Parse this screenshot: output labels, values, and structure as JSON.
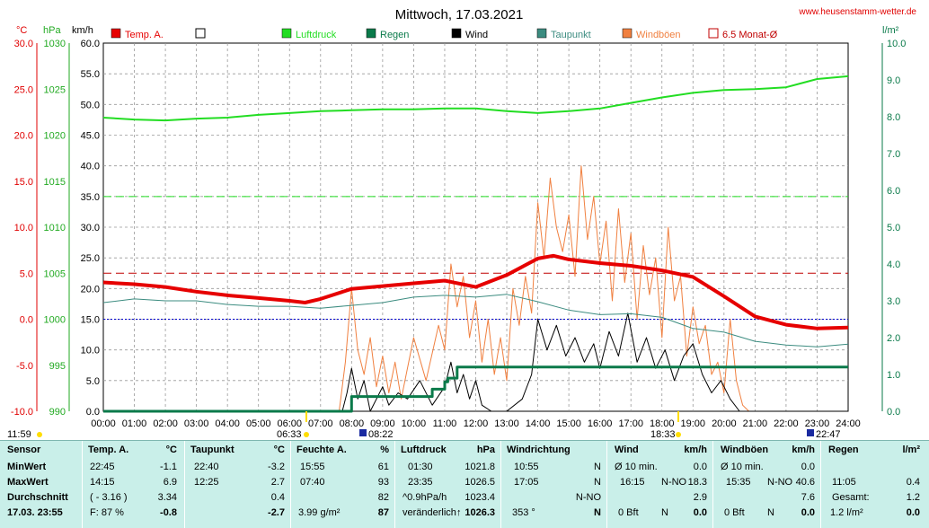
{
  "title": "Mittwoch, 17.03.2021",
  "site": "www.heusenstamm-wetter.de",
  "units": {
    "temp": "°C",
    "press": "hPa",
    "wind": "km/h",
    "rain": "l/m²"
  },
  "legend": [
    {
      "label": "Temp. A.",
      "color": "#e60000",
      "type": "fill"
    },
    {
      "label": "",
      "color": "#ffffff",
      "type": "box"
    },
    {
      "label": "Luftdruck",
      "color": "#22dd22",
      "type": "fill"
    },
    {
      "label": "Regen",
      "color": "#0a7a4a",
      "type": "fill"
    },
    {
      "label": "Wind",
      "color": "#000000",
      "type": "fill"
    },
    {
      "label": "Taupunkt",
      "color": "#3c8c80",
      "type": "fill"
    },
    {
      "label": "Windböen",
      "color": "#f08040",
      "type": "fill"
    },
    {
      "label": "6.5 Monat-Ø",
      "color": "#c00000",
      "type": "box"
    }
  ],
  "axes": {
    "temp_ticks": [
      "30.0",
      "25.0",
      "20.0",
      "15.0",
      "10.0",
      "5.0",
      "0.0",
      "-5.0",
      "-10.0"
    ],
    "press_ticks": [
      "1030",
      "1025",
      "1020",
      "1015",
      "1010",
      "1005",
      "1000",
      "995",
      "990"
    ],
    "wind_ticks": [
      "60.0",
      "55.0",
      "50.0",
      "45.0",
      "40.0",
      "35.0",
      "30.0",
      "25.0",
      "20.0",
      "15.0",
      "10.0",
      "5.0",
      "0.0"
    ],
    "rain_ticks": [
      "10.0",
      "9.0",
      "8.0",
      "7.0",
      "6.0",
      "5.0",
      "4.0",
      "3.0",
      "2.0",
      "1.0",
      "0.0"
    ],
    "hour_ticks": [
      "00:00",
      "01:00",
      "02:00",
      "03:00",
      "04:00",
      "05:00",
      "06:00",
      "07:00",
      "08:00",
      "09:00",
      "10:00",
      "11:00",
      "12:00",
      "13:00",
      "14:00",
      "15:00",
      "16:00",
      "17:00",
      "18:00",
      "19:00",
      "20:00",
      "21:00",
      "22:00",
      "23:00",
      "24:00"
    ]
  },
  "sun_marks": {
    "left": "11:59",
    "sunrise": "06:33",
    "moonrise": "08:22",
    "noon": "18:33",
    "moonset": "22:47"
  },
  "chart_data": {
    "type": "line",
    "title": "Mittwoch, 17.03.2021",
    "x_unit": "hour",
    "xlim": [
      0,
      24
    ],
    "temp_ylim": [
      -10,
      30
    ],
    "press_ylim": [
      990,
      1030
    ],
    "wind_ylim": [
      0,
      60
    ],
    "rain_ylim": [
      0,
      10
    ],
    "reference_lines": {
      "temp_avg_6_5_month": 5.0,
      "wind_ref": 35.0,
      "zero_line": 0.0
    },
    "series": [
      {
        "name": "Temp. A.",
        "axis": "temp",
        "color": "#e60000",
        "x": [
          0,
          1,
          2,
          3,
          4,
          5,
          6,
          6.5,
          7,
          8,
          9,
          10,
          11,
          12,
          13,
          14,
          14.5,
          15,
          16,
          17,
          18,
          19,
          20,
          21,
          22,
          23,
          24
        ],
        "y": [
          4.0,
          3.8,
          3.5,
          3.0,
          2.6,
          2.3,
          2.0,
          1.8,
          2.2,
          3.3,
          3.6,
          3.9,
          4.2,
          3.5,
          4.8,
          6.6,
          6.9,
          6.5,
          6.1,
          5.8,
          5.3,
          4.6,
          2.5,
          0.3,
          -0.6,
          -1.0,
          -0.9
        ]
      },
      {
        "name": "Taupunkt",
        "axis": "temp",
        "color": "#3c8c80",
        "x": [
          0,
          1,
          2,
          3,
          4,
          5,
          6,
          7,
          8,
          9,
          10,
          11,
          12,
          13,
          14,
          15,
          16,
          17,
          18,
          19,
          20,
          21,
          22,
          23,
          24
        ],
        "y": [
          1.8,
          2.2,
          2.0,
          2.0,
          1.6,
          1.4,
          1.4,
          1.2,
          1.5,
          1.8,
          2.4,
          2.6,
          2.4,
          2.7,
          1.9,
          1.0,
          0.5,
          0.6,
          0.2,
          -1.0,
          -1.4,
          -2.4,
          -2.8,
          -3.0,
          -2.7
        ]
      },
      {
        "name": "Luftdruck",
        "axis": "press",
        "color": "#22dd22",
        "x": [
          0,
          1,
          2,
          3,
          4,
          5,
          6,
          7,
          8,
          9,
          10,
          11,
          12,
          13,
          14,
          15,
          16,
          17,
          18,
          19,
          20,
          21,
          22,
          23,
          24
        ],
        "y": [
          1021.9,
          1021.7,
          1021.6,
          1021.8,
          1021.9,
          1022.2,
          1022.4,
          1022.6,
          1022.7,
          1022.8,
          1022.8,
          1022.9,
          1022.9,
          1022.6,
          1022.4,
          1022.6,
          1022.9,
          1023.5,
          1024.1,
          1024.6,
          1024.9,
          1025.0,
          1025.2,
          1026.1,
          1026.4
        ]
      },
      {
        "name": "Regen",
        "axis": "rain",
        "color": "#0a7a4a",
        "x": [
          0,
          7.9,
          8.0,
          9.3,
          9.6,
          10.3,
          10.6,
          11.0,
          11.1,
          11.4,
          12.0,
          14.0,
          16.0,
          18.0,
          20.0,
          22.0,
          24
        ],
        "y": [
          0,
          0,
          0.4,
          0.4,
          0.4,
          0.4,
          0.6,
          0.8,
          0.9,
          1.2,
          1.2,
          1.2,
          1.2,
          1.2,
          1.2,
          1.2,
          1.2
        ]
      },
      {
        "name": "Wind",
        "axis": "wind",
        "color": "#000000",
        "x": [
          0,
          7.7,
          7.85,
          8.0,
          8.2,
          8.4,
          8.6,
          9.0,
          9.2,
          9.5,
          9.8,
          10.2,
          10.6,
          11.0,
          11.2,
          11.4,
          11.6,
          11.8,
          12.0,
          12.2,
          12.5,
          13.0,
          13.5,
          13.8,
          14.0,
          14.3,
          14.6,
          14.9,
          15.2,
          15.5,
          15.8,
          16.0,
          16.3,
          16.6,
          16.9,
          17.2,
          17.5,
          17.8,
          18.1,
          18.4,
          18.7,
          19.0,
          19.3,
          19.6,
          19.9,
          20.2,
          20.5,
          21.0,
          24
        ],
        "y": [
          0,
          0,
          3,
          7,
          2,
          5,
          0,
          4,
          1,
          3,
          2,
          5,
          1,
          4,
          8,
          3,
          6,
          2,
          5,
          1,
          0,
          0,
          2,
          6,
          15,
          10,
          14,
          9,
          12,
          8,
          11,
          7,
          13,
          9,
          16,
          8,
          12,
          7,
          10,
          5,
          9,
          11,
          6,
          3,
          5,
          2,
          0,
          0,
          0
        ]
      },
      {
        "name": "Windböen",
        "axis": "wind",
        "color": "#f08040",
        "x": [
          0,
          7.6,
          7.8,
          8.0,
          8.2,
          8.4,
          8.6,
          8.8,
          9.0,
          9.2,
          9.4,
          9.6,
          10.0,
          10.4,
          10.8,
          11.0,
          11.2,
          11.4,
          11.6,
          11.8,
          12.0,
          12.2,
          12.4,
          12.6,
          12.8,
          13.0,
          13.2,
          13.4,
          13.6,
          13.8,
          14.0,
          14.2,
          14.4,
          14.6,
          14.8,
          15.0,
          15.2,
          15.4,
          15.6,
          15.8,
          16.0,
          16.2,
          16.4,
          16.6,
          16.8,
          17.0,
          17.2,
          17.4,
          17.6,
          17.8,
          18.0,
          18.2,
          18.4,
          18.6,
          18.8,
          19.0,
          19.2,
          19.4,
          19.6,
          19.8,
          20.0,
          20.2,
          20.4,
          20.6,
          20.8,
          21.0,
          24
        ],
        "y": [
          0,
          0,
          8,
          20,
          10,
          6,
          12,
          4,
          9,
          3,
          8,
          2,
          12,
          5,
          14,
          10,
          24,
          17,
          22,
          12,
          18,
          8,
          15,
          6,
          12,
          5,
          20,
          14,
          22,
          16,
          34,
          25,
          38,
          30,
          26,
          32,
          22,
          40,
          28,
          35,
          24,
          31,
          18,
          33,
          21,
          29,
          15,
          27,
          19,
          25,
          12,
          30,
          18,
          22,
          9,
          17,
          11,
          14,
          6,
          8,
          3,
          15,
          5,
          1,
          0,
          0,
          0
        ]
      }
    ]
  },
  "panel": {
    "date": "17.03. 23:55",
    "labels": {
      "sensor": "Sensor",
      "min": "MinWert",
      "max": "MaxWert",
      "avg": "Durchschnitt"
    },
    "temp": {
      "header": "Temp. A.",
      "unit": "°C",
      "min_time": "22:45",
      "min": "-1.1",
      "max_time": "14:15",
      "max": "6.9",
      "avg_hint": "( - 3.16 )",
      "avg": "3.34",
      "current_hint": "F: 87 %",
      "current": "-0.8"
    },
    "dew": {
      "header": "Taupunkt",
      "unit": "°C",
      "min_time": "22:40",
      "min": "-3.2",
      "max_time": "12:25",
      "max": "2.7",
      "avg": "0.4",
      "current": "-2.7"
    },
    "hum": {
      "header": "Feuchte A.",
      "unit": "%",
      "min_time": "15:55",
      "min": "61",
      "max_time": "07:40",
      "max": "93",
      "avg": "82",
      "current_hint": "3.99 g/m²",
      "current": "87"
    },
    "press": {
      "header": "Luftdruck",
      "unit": "hPa",
      "min_time": "01:30",
      "min": "1021.8",
      "max_time": "23:35",
      "max": "1026.5",
      "avg_hint": "^0.9hPa/h",
      "avg": "1023.4",
      "current_hint": "veränderlich",
      "current_arrow": "↑",
      "current": "1026.3"
    },
    "dir": {
      "header": "Windrichtung",
      "min_time": "10:55",
      "min": "N",
      "max_time": "17:05",
      "max": "N",
      "avg": "N-NO",
      "current": "353 °",
      "current_dir": "N"
    },
    "wind": {
      "header": "Wind",
      "unit": "km/h",
      "min_time": "Ø 10 min.",
      "min": "0.0",
      "max_time": "16:15",
      "max_dir": "N-NO",
      "max": "18.3",
      "avg": "2.9",
      "current_hint": "0 Bft",
      "current_dir": "N",
      "current": "0.0"
    },
    "gust": {
      "header": "Windböen",
      "unit": "km/h",
      "min_time": "Ø 10 min.",
      "min": "0.0",
      "max_time": "15:35",
      "max_dir": "N-NO",
      "max": "40.6",
      "avg": "7.6",
      "current_hint": "0 Bft",
      "current_dir": "N",
      "current": "0.0"
    },
    "rain": {
      "header": "Regen",
      "unit": "l/m²",
      "max_time": "11:05",
      "max": "0.4",
      "avg_label": "Gesamt:",
      "avg": "1.2",
      "current_hint": "1.2 l/m²",
      "current": "0.0"
    }
  }
}
